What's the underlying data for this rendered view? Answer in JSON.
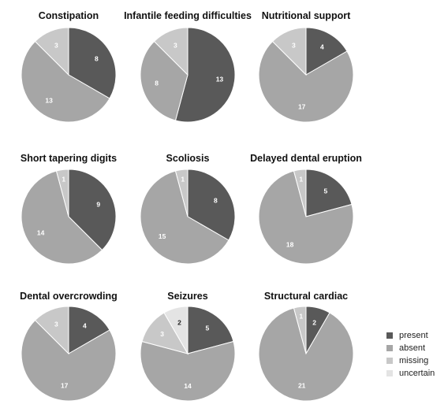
{
  "chart_data": [
    {
      "type": "pie",
      "title": "Constipation",
      "slices": [
        {
          "category": "present",
          "value": 8
        },
        {
          "category": "absent",
          "value": 13
        },
        {
          "category": "missing",
          "value": 3
        }
      ]
    },
    {
      "type": "pie",
      "title": "Infantile feeding difficulties",
      "slices": [
        {
          "category": "present",
          "value": 13
        },
        {
          "category": "absent",
          "value": 8
        },
        {
          "category": "missing",
          "value": 3
        }
      ]
    },
    {
      "type": "pie",
      "title": "Nutritional support",
      "slices": [
        {
          "category": "present",
          "value": 4
        },
        {
          "category": "absent",
          "value": 17
        },
        {
          "category": "missing",
          "value": 3
        }
      ]
    },
    {
      "type": "pie",
      "title": "Short tapering digits",
      "slices": [
        {
          "category": "present",
          "value": 9
        },
        {
          "category": "absent",
          "value": 14
        },
        {
          "category": "missing",
          "value": 1
        }
      ]
    },
    {
      "type": "pie",
      "title": "Scoliosis",
      "slices": [
        {
          "category": "present",
          "value": 8
        },
        {
          "category": "absent",
          "value": 15
        },
        {
          "category": "missing",
          "value": 1
        }
      ]
    },
    {
      "type": "pie",
      "title": "Delayed dental eruption",
      "slices": [
        {
          "category": "present",
          "value": 5
        },
        {
          "category": "absent",
          "value": 18
        },
        {
          "category": "missing",
          "value": 1
        }
      ]
    },
    {
      "type": "pie",
      "title": "Dental overcrowding",
      "slices": [
        {
          "category": "present",
          "value": 4
        },
        {
          "category": "absent",
          "value": 17
        },
        {
          "category": "missing",
          "value": 3
        }
      ]
    },
    {
      "type": "pie",
      "title": "Seizures",
      "slices": [
        {
          "category": "present",
          "value": 5
        },
        {
          "category": "absent",
          "value": 14
        },
        {
          "category": "missing",
          "value": 3
        },
        {
          "category": "uncertain",
          "value": 2
        }
      ]
    },
    {
      "type": "pie",
      "title": "Structural cardiac",
      "slices": [
        {
          "category": "present",
          "value": 2
        },
        {
          "category": "absent",
          "value": 21
        },
        {
          "category": "missing",
          "value": 1
        }
      ]
    }
  ],
  "legend": {
    "placement": "bottom-right",
    "items": [
      {
        "key": "present",
        "label": "present",
        "color": "#595959"
      },
      {
        "key": "absent",
        "label": "absent",
        "color": "#a6a6a6"
      },
      {
        "key": "missing",
        "label": "missing",
        "color": "#c8c8c8"
      },
      {
        "key": "uncertain",
        "label": "uncertain",
        "color": "#e4e4e4"
      }
    ]
  },
  "label_colors": {
    "present": "#ffffff",
    "absent": "#ffffff",
    "missing": "#ffffff",
    "uncertain": "#222222"
  }
}
